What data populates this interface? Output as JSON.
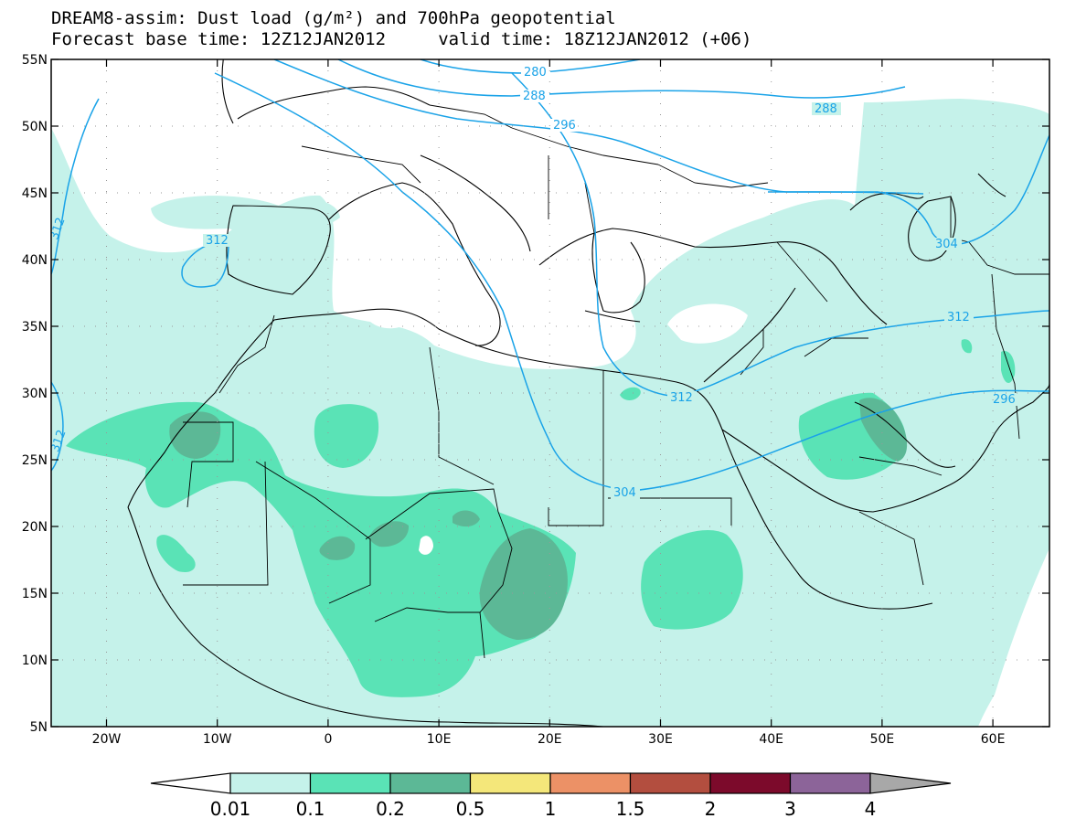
{
  "header": {
    "line1": "DREAM8-assim: Dust load (g/m²) and 700hPa geopotential",
    "line2": "Forecast base time: 12Z12JAN2012     valid time: 18Z12JAN2012 (+06)"
  },
  "map": {
    "lat_ticks": [
      "55N",
      "50N",
      "45N",
      "40N",
      "35N",
      "30N",
      "25N",
      "20N",
      "15N",
      "10N",
      "5N"
    ],
    "lon_ticks": [
      "20W",
      "10W",
      "0",
      "10E",
      "20E",
      "30E",
      "40E",
      "50E",
      "60E"
    ],
    "contour_labels": [
      "280",
      "288",
      "296",
      "288",
      "312",
      "312",
      "312",
      "304",
      "312",
      "296",
      "304",
      "312"
    ],
    "colors": {
      "dust_0_01": "#c5f2ea",
      "dust_0_1": "#5ae3b6",
      "dust_0_2": "#5cb896",
      "dust_0_5": "#6f8e7c",
      "contour": "#1aa3e8"
    }
  },
  "colorbar": {
    "labels": [
      "0.01",
      "0.1",
      "0.2",
      "0.5",
      "1",
      "1.5",
      "2",
      "3",
      "4"
    ],
    "colors": [
      "#c5f2ea",
      "#5ae3b6",
      "#5cb896",
      "#f4e77a",
      "#ec9166",
      "#b34e3f",
      "#7c0a2b",
      "#8c6499",
      "#a8a8a8"
    ]
  }
}
